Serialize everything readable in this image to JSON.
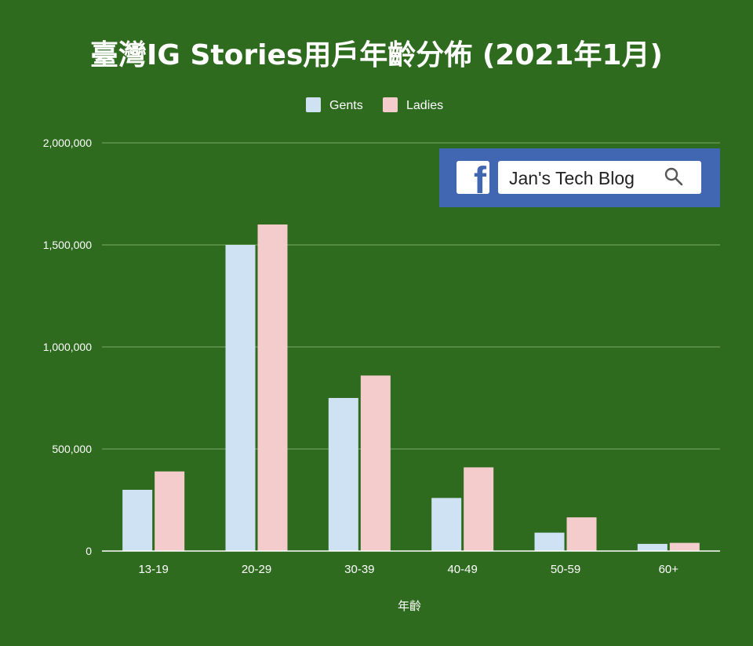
{
  "chart_data": {
    "type": "bar",
    "title": "臺灣IG Stories用戶年齡分佈 (2021年1月)",
    "xlabel": "年齡",
    "ylabel": "",
    "categories": [
      "13-19",
      "20-29",
      "30-39",
      "40-49",
      "50-59",
      "60+"
    ],
    "series": [
      {
        "name": "Gents",
        "color": "#cfe2f3",
        "values": [
          300000,
          1500000,
          750000,
          260000,
          90000,
          35000
        ]
      },
      {
        "name": "Ladies",
        "color": "#f4cccc",
        "values": [
          390000,
          1600000,
          860000,
          410000,
          165000,
          40000
        ]
      }
    ],
    "ylim": [
      0,
      2000000
    ],
    "yticks": [
      0,
      500000,
      1000000,
      1500000,
      2000000
    ],
    "ytick_labels": [
      "0",
      "500,000",
      "1,000,000",
      "1,500,000",
      "2,000,000"
    ],
    "grid": true,
    "legend": "top-center"
  },
  "badge": {
    "icon": "facebook-icon",
    "text": "Jan's Tech Blog",
    "search_icon": "search-icon"
  },
  "colors": {
    "background": "#2e6b1f",
    "text": "#ffffff",
    "badge": "#4267b2"
  }
}
